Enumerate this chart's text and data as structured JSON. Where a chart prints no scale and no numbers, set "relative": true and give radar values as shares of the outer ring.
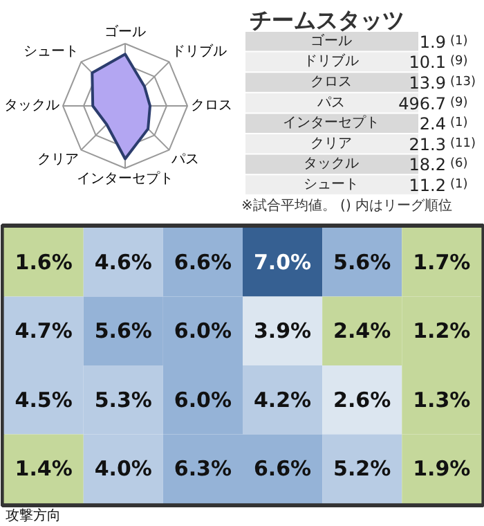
{
  "chart_data": [
    {
      "type": "radar",
      "categories": [
        "ゴール",
        "ドリブル",
        "クロス",
        "パス",
        "インターセプト",
        "クリア",
        "タックル",
        "シュート"
      ],
      "relative": true,
      "grid": true,
      "series": [
        {
          "color": "#b3a6f2",
          "values": [
            0.83,
            0.44,
            0.4,
            0.52,
            0.85,
            0.42,
            0.52,
            0.75
          ]
        }
      ]
    },
    {
      "type": "other",
      "title": "チームスタッツ",
      "categories": [
        "ゴール",
        "ドリブル",
        "クロス",
        "パス",
        "インターセプト",
        "クリア",
        "タックル",
        "シュート"
      ],
      "series": [
        {
          "values": [
            1.9,
            10.1,
            13.9,
            496.7,
            2.4,
            21.3,
            18.2,
            11.2
          ],
          "value_labels": [
            "1.9",
            "10.1",
            "13.9",
            "496.7",
            "2.4",
            "21.3",
            "18.2",
            "11.2"
          ]
        },
        {
          "values": [
            1,
            9,
            13,
            9,
            1,
            11,
            6,
            1
          ],
          "value_labels": [
            "(1)",
            "(9)",
            "(13)",
            "(9)",
            "(1)",
            "(11)",
            "(6)",
            "(1)"
          ]
        }
      ],
      "annotations": [
        "※試合平均値。 () 内はリーグ順位"
      ]
    },
    {
      "type": "heatmap",
      "categories": [
        null,
        null,
        null,
        null,
        null,
        null
      ],
      "y_categories": [
        null,
        null,
        null,
        null
      ],
      "cells": [
        [
          1.6,
          4.6,
          6.6,
          7.0,
          5.6,
          1.7
        ],
        [
          4.7,
          5.6,
          6.0,
          3.9,
          2.4,
          1.2
        ],
        [
          4.5,
          5.3,
          6.0,
          4.2,
          2.6,
          1.3
        ],
        [
          1.4,
          4.0,
          6.3,
          6.6,
          5.2,
          1.9
        ]
      ],
      "cell_labels": [
        [
          "1.6%",
          "4.6%",
          "6.6%",
          "7.0%",
          "5.6%",
          "1.7%"
        ],
        [
          "4.7%",
          "5.6%",
          "6.0%",
          "3.9%",
          "2.4%",
          "1.2%"
        ],
        [
          "4.5%",
          "5.3%",
          "6.0%",
          "4.2%",
          "2.6%",
          "1.3%"
        ],
        [
          "1.4%",
          "4.0%",
          "6.3%",
          "6.6%",
          "5.2%",
          "1.9%"
        ]
      ],
      "annotations": [
        "攻撃方向"
      ]
    }
  ]
}
